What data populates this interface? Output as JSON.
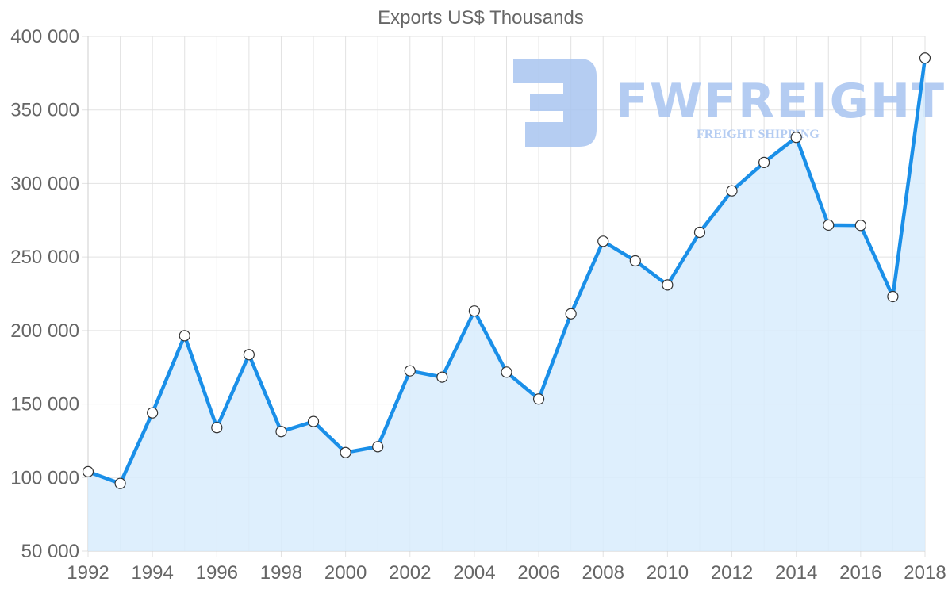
{
  "chart_data": {
    "type": "line",
    "title": "Exports US$ Thousands",
    "xlabel": "",
    "ylabel": "",
    "x": [
      1992,
      1993,
      1994,
      1995,
      1996,
      1997,
      1998,
      1999,
      2000,
      2001,
      2002,
      2003,
      2004,
      2005,
      2006,
      2007,
      2008,
      2009,
      2010,
      2011,
      2012,
      2013,
      2014,
      2015,
      2016,
      2017,
      2018
    ],
    "series": [
      {
        "name": "Exports US$ Thousands",
        "values": [
          104000,
          96000,
          144000,
          196500,
          134000,
          183600,
          131300,
          138100,
          117000,
          121000,
          172600,
          168300,
          213300,
          171700,
          153400,
          211400,
          260700,
          247400,
          231000,
          266800,
          295000,
          314300,
          331400,
          271700,
          271500,
          223100,
          385300
        ]
      }
    ],
    "ylim": [
      50000,
      400000
    ],
    "xlim": [
      1992,
      2018
    ],
    "y_ticks": [
      "50 000",
      "100 000",
      "150 000",
      "200 000",
      "250 000",
      "300 000",
      "350 000",
      "400 000"
    ],
    "y_tick_values": [
      50000,
      100000,
      150000,
      200000,
      250000,
      300000,
      350000,
      400000
    ],
    "x_ticks": [
      "1992",
      "1994",
      "1996",
      "1998",
      "2000",
      "2002",
      "2004",
      "2006",
      "2008",
      "2010",
      "2012",
      "2014",
      "2016",
      "2018"
    ],
    "grid": true,
    "legend": "none",
    "area_fill": true
  },
  "colors": {
    "line": "#1a8fe8",
    "fill": "#d8ecfd",
    "point_fill": "#ffffff",
    "point_stroke": "#333333",
    "watermark": "#a8c4f0"
  },
  "watermark": {
    "brand": "FWFREIGHT",
    "tagline": "FREIGHT SHIPPING"
  }
}
